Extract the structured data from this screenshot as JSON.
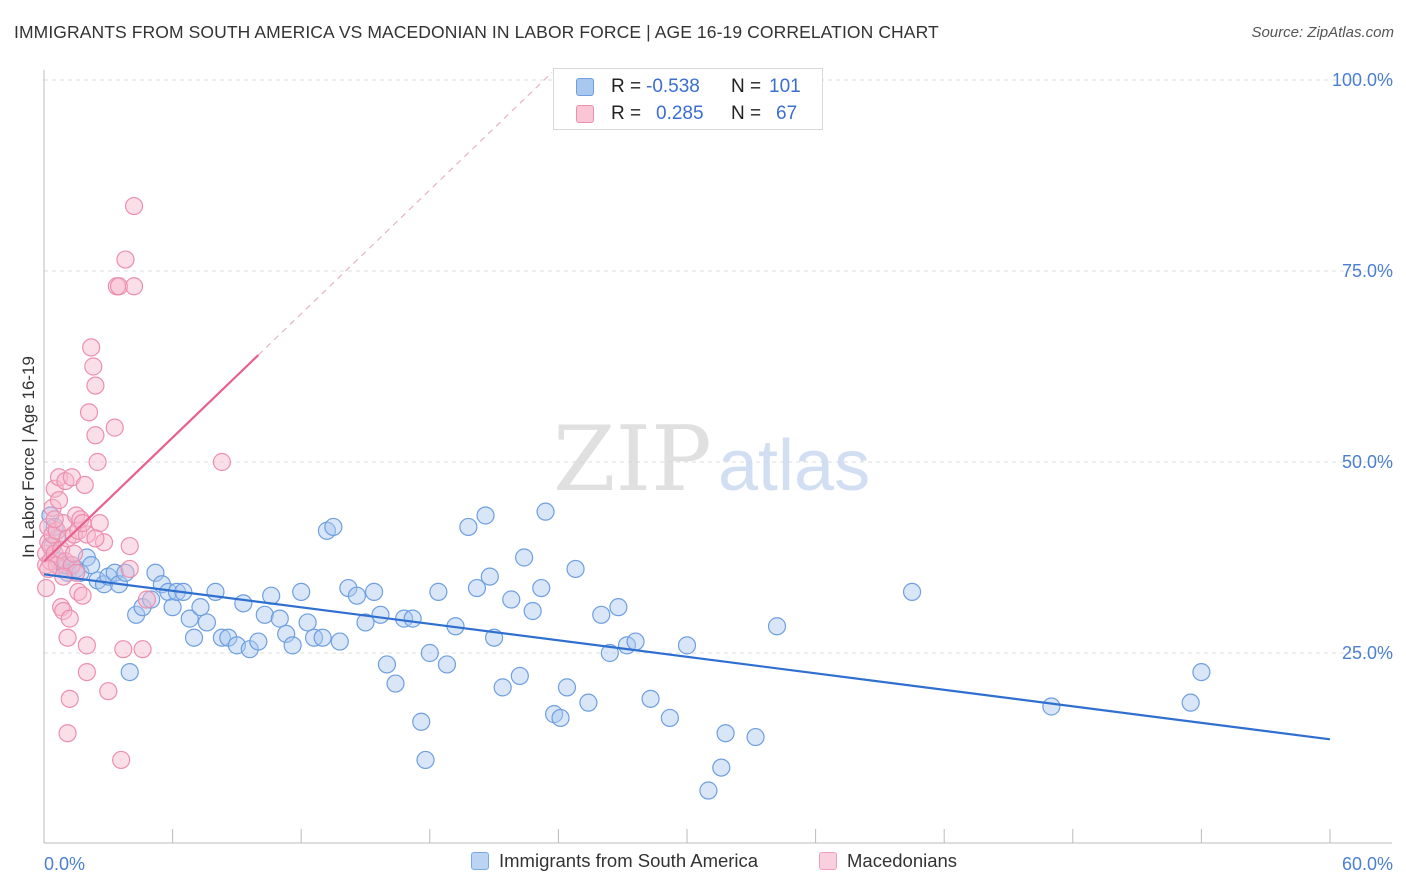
{
  "header": {
    "title": "IMMIGRANTS FROM SOUTH AMERICA VS MACEDONIAN IN LABOR FORCE | AGE 16-19 CORRELATION CHART",
    "source": "Source: ZipAtlas.com"
  },
  "watermark": {
    "zip": "ZIP",
    "atlas": "atlas"
  },
  "legend": {
    "rows": [
      {
        "r_label": "R =",
        "r_value": "-0.538",
        "n_label": "N =",
        "n_value": "101"
      },
      {
        "r_label": "R =",
        "r_value": "0.285",
        "n_label": "N =",
        "n_value": "67"
      }
    ]
  },
  "bottom_legend": {
    "series1": "Immigrants from South America",
    "series2": "Macedonians"
  },
  "colors": {
    "blue_fill": "#a9c8f0",
    "blue_stroke": "#6f9fe0",
    "blue_line": "#2f6fd0",
    "pink_fill": "#f6b8cc",
    "pink_stroke": "#ec8fae",
    "pink_line": "#e8608c",
    "grid": "#dcdcdc",
    "axis_text": "#4a7fd1"
  },
  "chart_data": {
    "type": "scatter",
    "title": "IMMIGRANTS FROM SOUTH AMERICA VS MACEDONIAN IN LABOR FORCE | AGE 16-19 CORRELATION CHART",
    "xlabel": "",
    "ylabel": "In Labor Force | Age 16-19",
    "xlim": [
      0,
      60
    ],
    "ylim": [
      0,
      102
    ],
    "x_tick_labels": [
      "0.0%",
      "60.0%"
    ],
    "y_ticks": [
      25,
      50,
      75,
      100
    ],
    "y_tick_labels": [
      "25.0%",
      "50.0%",
      "75.0%",
      "100.0%"
    ],
    "series": [
      {
        "name": "Immigrants from South America",
        "r": -0.538,
        "n": 101,
        "trend": {
          "x": [
            0,
            60
          ],
          "y": [
            35.3,
            13.7
          ]
        },
        "points": [
          [
            0.3,
            43
          ],
          [
            0.5,
            41.5
          ],
          [
            0.6,
            40
          ],
          [
            0.7,
            37
          ],
          [
            0.8,
            36
          ],
          [
            1,
            36.5
          ],
          [
            1.1,
            35.5
          ],
          [
            1.3,
            36.5
          ],
          [
            1.5,
            36
          ],
          [
            1.7,
            35.5
          ],
          [
            2,
            37.5
          ],
          [
            2.2,
            36.5
          ],
          [
            2.5,
            34.5
          ],
          [
            2.8,
            34
          ],
          [
            3,
            35
          ],
          [
            3.3,
            35.5
          ],
          [
            3.5,
            34
          ],
          [
            3.8,
            35.5
          ],
          [
            4,
            22.5
          ],
          [
            4.3,
            30
          ],
          [
            4.6,
            31
          ],
          [
            5,
            32
          ],
          [
            5.2,
            35.5
          ],
          [
            5.5,
            34
          ],
          [
            5.8,
            33
          ],
          [
            6,
            31
          ],
          [
            6.2,
            33
          ],
          [
            6.5,
            33
          ],
          [
            6.8,
            29.5
          ],
          [
            7,
            27
          ],
          [
            7.3,
            31
          ],
          [
            7.6,
            29
          ],
          [
            8,
            33
          ],
          [
            8.3,
            27
          ],
          [
            8.6,
            27
          ],
          [
            9,
            26
          ],
          [
            9.3,
            31.5
          ],
          [
            9.6,
            25.5
          ],
          [
            10,
            26.5
          ],
          [
            10.3,
            30
          ],
          [
            10.6,
            32.5
          ],
          [
            11,
            29.5
          ],
          [
            11.3,
            27.5
          ],
          [
            11.6,
            26
          ],
          [
            12,
            33
          ],
          [
            12.3,
            29
          ],
          [
            12.6,
            27
          ],
          [
            13,
            27
          ],
          [
            13.2,
            41
          ],
          [
            13.5,
            41.5
          ],
          [
            13.8,
            26.5
          ],
          [
            14.2,
            33.5
          ],
          [
            14.6,
            32.5
          ],
          [
            15,
            29
          ],
          [
            15.4,
            33
          ],
          [
            15.7,
            30
          ],
          [
            16,
            23.5
          ],
          [
            16.4,
            21
          ],
          [
            16.8,
            29.5
          ],
          [
            17.2,
            29.5
          ],
          [
            17.6,
            16
          ],
          [
            17.8,
            11
          ],
          [
            18,
            25
          ],
          [
            18.4,
            33
          ],
          [
            18.8,
            23.5
          ],
          [
            19.2,
            28.5
          ],
          [
            19.8,
            41.5
          ],
          [
            20.2,
            33.5
          ],
          [
            20.6,
            43
          ],
          [
            20.8,
            35
          ],
          [
            21,
            27
          ],
          [
            21.4,
            20.5
          ],
          [
            21.8,
            32
          ],
          [
            22.2,
            22
          ],
          [
            22.4,
            37.5
          ],
          [
            22.8,
            30.5
          ],
          [
            23.2,
            33.5
          ],
          [
            23.4,
            43.5
          ],
          [
            23.8,
            17
          ],
          [
            24.1,
            16.5
          ],
          [
            24.4,
            20.5
          ],
          [
            24.8,
            36
          ],
          [
            25.4,
            18.5
          ],
          [
            26,
            30
          ],
          [
            26.4,
            25
          ],
          [
            26.8,
            31
          ],
          [
            27.2,
            26
          ],
          [
            27.6,
            26.5
          ],
          [
            28.3,
            19
          ],
          [
            29.2,
            16.5
          ],
          [
            30,
            26
          ],
          [
            31,
            7
          ],
          [
            31.6,
            10
          ],
          [
            31.8,
            14.5
          ],
          [
            33.2,
            14
          ],
          [
            34.2,
            28.5
          ],
          [
            40.5,
            33
          ],
          [
            47,
            18
          ],
          [
            53.5,
            18.5
          ],
          [
            54,
            22.5
          ],
          [
            0.4,
            39
          ]
        ]
      },
      {
        "name": "Macedonians",
        "r": 0.285,
        "n": 67,
        "trend": {
          "x": [
            0,
            10
          ],
          "y": [
            37,
            64
          ]
        },
        "points": [
          [
            0.1,
            33.5
          ],
          [
            0.1,
            36.5
          ],
          [
            0.1,
            38
          ],
          [
            0.2,
            39.5
          ],
          [
            0.2,
            41.5
          ],
          [
            0.3,
            37
          ],
          [
            0.3,
            39
          ],
          [
            0.4,
            40.5
          ],
          [
            0.4,
            44
          ],
          [
            0.5,
            38
          ],
          [
            0.5,
            46.5
          ],
          [
            0.6,
            36.5
          ],
          [
            0.6,
            41
          ],
          [
            0.7,
            45
          ],
          [
            0.7,
            48
          ],
          [
            0.8,
            38.5
          ],
          [
            0.8,
            31
          ],
          [
            0.9,
            30.5
          ],
          [
            0.9,
            42
          ],
          [
            1,
            37
          ],
          [
            1,
            47.5
          ],
          [
            1.1,
            40
          ],
          [
            1.1,
            27
          ],
          [
            1.1,
            14.5
          ],
          [
            1.2,
            29.5
          ],
          [
            1.2,
            19
          ],
          [
            1.3,
            36.5
          ],
          [
            1.3,
            48
          ],
          [
            1.4,
            40.5
          ],
          [
            1.5,
            35.5
          ],
          [
            1.5,
            43
          ],
          [
            1.6,
            33
          ],
          [
            1.6,
            41
          ],
          [
            1.7,
            42.5
          ],
          [
            1.8,
            32.5
          ],
          [
            1.9,
            47
          ],
          [
            2,
            40.5
          ],
          [
            2,
            26
          ],
          [
            2,
            22.5
          ],
          [
            2.1,
            56.5
          ],
          [
            2.2,
            65
          ],
          [
            2.3,
            62.5
          ],
          [
            2.4,
            53.5
          ],
          [
            2.4,
            60
          ],
          [
            2.5,
            50
          ],
          [
            2.6,
            42
          ],
          [
            2.8,
            39.5
          ],
          [
            3,
            20
          ],
          [
            3.3,
            54.5
          ],
          [
            3.4,
            73
          ],
          [
            3.5,
            73
          ],
          [
            3.6,
            11
          ],
          [
            3.7,
            25.5
          ],
          [
            3.8,
            76.5
          ],
          [
            4,
            36
          ],
          [
            4,
            39
          ],
          [
            4.2,
            73
          ],
          [
            4.2,
            83.5
          ],
          [
            4.6,
            25.5
          ],
          [
            4.8,
            32
          ],
          [
            8.3,
            50
          ],
          [
            0.2,
            36
          ],
          [
            0.5,
            42.5
          ],
          [
            0.9,
            35
          ],
          [
            1.4,
            38
          ],
          [
            1.8,
            42
          ],
          [
            2.4,
            40
          ]
        ]
      }
    ]
  }
}
